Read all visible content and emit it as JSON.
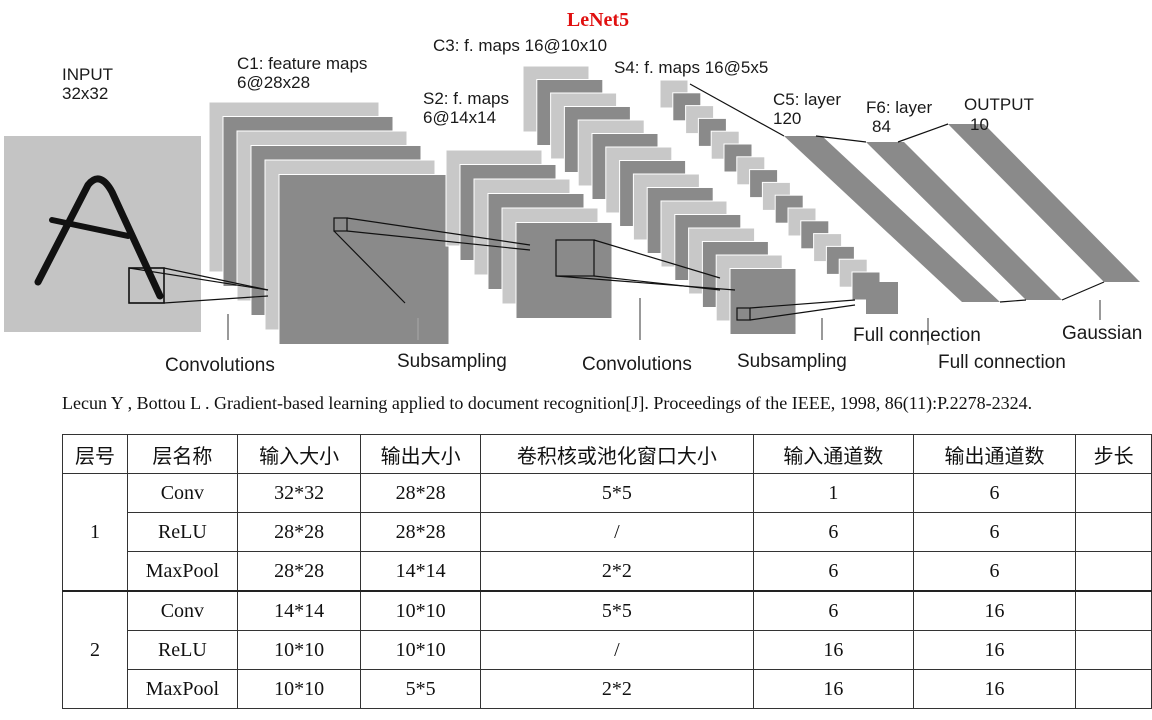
{
  "diagram": {
    "title": "LeNet5",
    "labels": {
      "input": [
        "INPUT",
        "32x32"
      ],
      "c1": [
        "C1: feature maps",
        "6@28x28"
      ],
      "s2": [
        "S2: f. maps",
        "6@14x14"
      ],
      "c3": [
        "C3: f. maps 16@10x10"
      ],
      "s4": [
        "S4: f. maps 16@5x5"
      ],
      "c5": [
        "C5: layer",
        "120"
      ],
      "f6": [
        "F6: layer",
        "84"
      ],
      "output": [
        "OUTPUT",
        "10"
      ]
    },
    "operations": {
      "conv1": "Convolutions",
      "sub1": "Subsampling",
      "conv2": "Convolutions",
      "sub2": "Subsampling",
      "full1": "Full connection",
      "full2": "Full connection",
      "gaussian": "Gaussian"
    },
    "input_glyph": "A"
  },
  "citation": "Lecun Y , Bottou L . Gradient-based  learning  applied  to document  recognition[J].  Proceedings  of the IEEE,  1998, 86(11):P.2278-2324.",
  "table": {
    "headers": [
      "层号",
      "层名称",
      "输入大小",
      "输出大小",
      "卷积核或池化窗口大小",
      "输入通道数",
      "输出通道数",
      "步长"
    ],
    "groups": [
      {
        "layer": "1",
        "rows": [
          [
            "Conv",
            "32*32",
            "28*28",
            "5*5",
            "1",
            "6"
          ],
          [
            "ReLU",
            "28*28",
            "28*28",
            "/",
            "6",
            "6"
          ],
          [
            "MaxPool",
            "28*28",
            "14*14",
            "2*2",
            "6",
            "6"
          ]
        ]
      },
      {
        "layer": "2",
        "rows": [
          [
            "Conv",
            "14*14",
            "10*10",
            "5*5",
            "6",
            "16"
          ],
          [
            "ReLU",
            "10*10",
            "10*10",
            "/",
            "16",
            "16"
          ],
          [
            "MaxPool",
            "10*10",
            "5*5",
            "2*2",
            "16",
            "16"
          ]
        ]
      }
    ]
  },
  "colors": {
    "title": "#e01010",
    "map_dark": "#8a8a8a",
    "map_light": "#c8c8c8",
    "input_bg": "#c4c4c4"
  }
}
